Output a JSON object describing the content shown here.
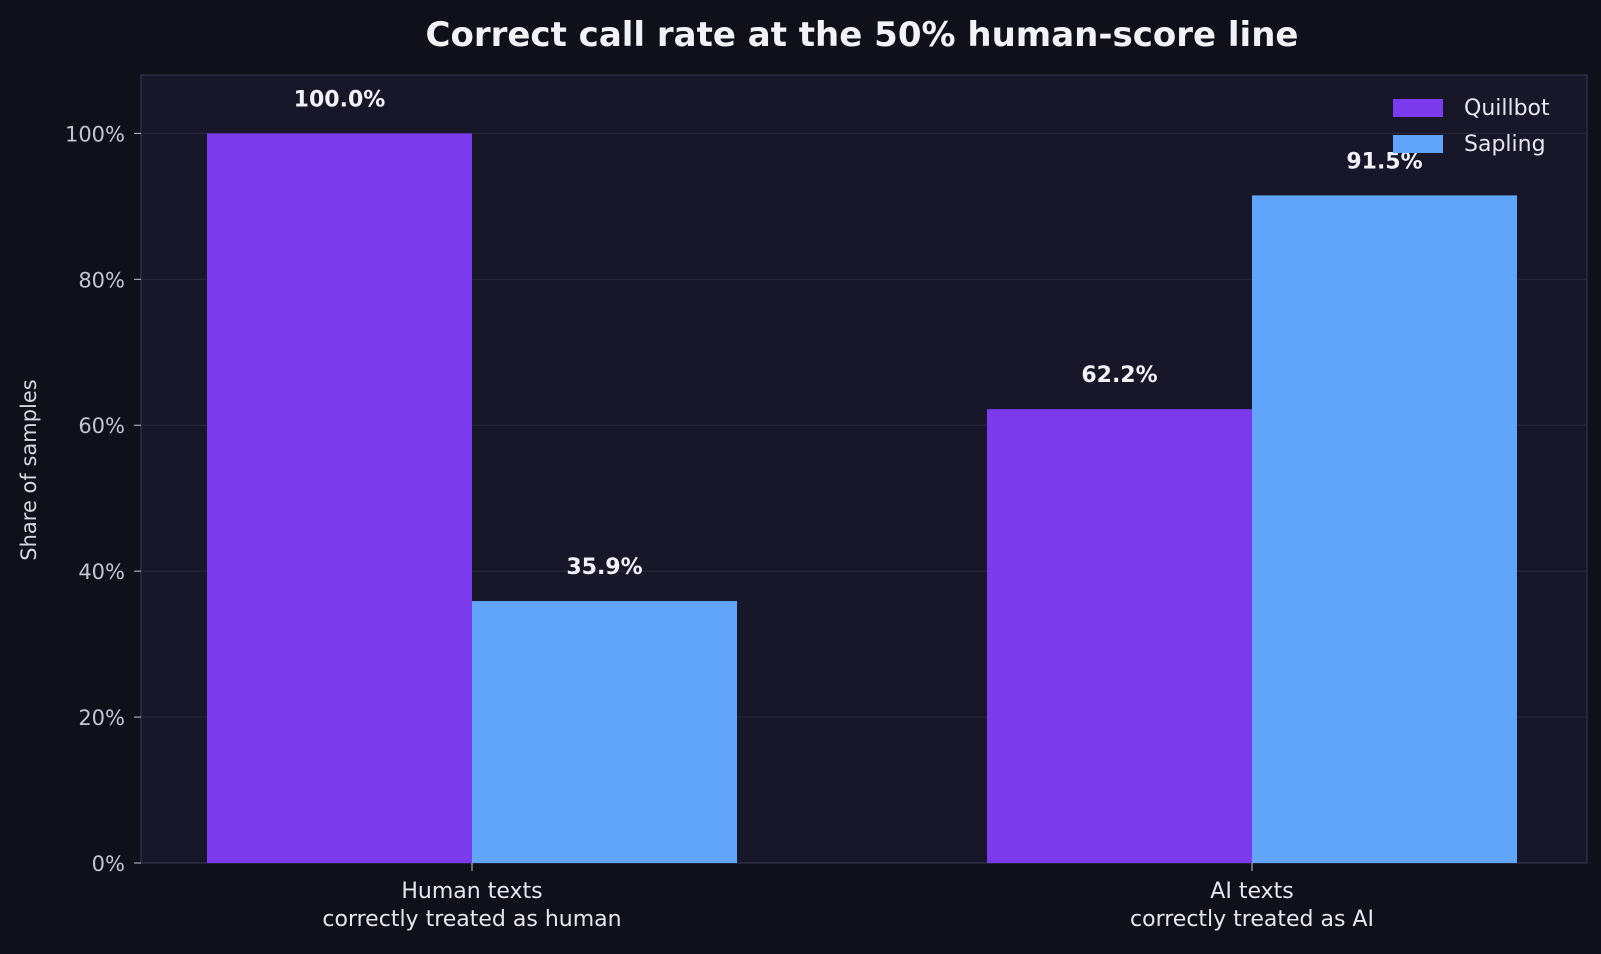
{
  "chart_data": {
    "type": "bar",
    "title": "Correct call rate at the 50% human-score line",
    "ylabel": "Share of samples",
    "xlabel": "",
    "ylim": [
      0,
      1.08
    ],
    "yticks": [
      0,
      0.2,
      0.4,
      0.6,
      0.8,
      1.0
    ],
    "ytick_labels": [
      "0%",
      "20%",
      "40%",
      "60%",
      "80%",
      "100%"
    ],
    "grid": true,
    "legend_position": "top-right",
    "categories": [
      [
        "Human texts",
        "correctly treated as human"
      ],
      [
        "AI texts",
        "correctly treated as AI"
      ]
    ],
    "series": [
      {
        "name": "Quillbot",
        "color": "#7c3aed",
        "values": [
          1.0,
          0.622
        ],
        "labels": [
          "100.0%",
          "62.2%"
        ]
      },
      {
        "name": "Sapling",
        "color": "#60a5fa",
        "values": [
          0.359,
          0.915
        ],
        "labels": [
          "35.9%",
          "91.5%"
        ]
      }
    ],
    "colors": {
      "background": "#10101a",
      "plot_background": "#171729",
      "grid": "#26263d",
      "spine": "#33334d",
      "text": "#f1f1f6",
      "tick_text": "#c4c4d4"
    }
  }
}
